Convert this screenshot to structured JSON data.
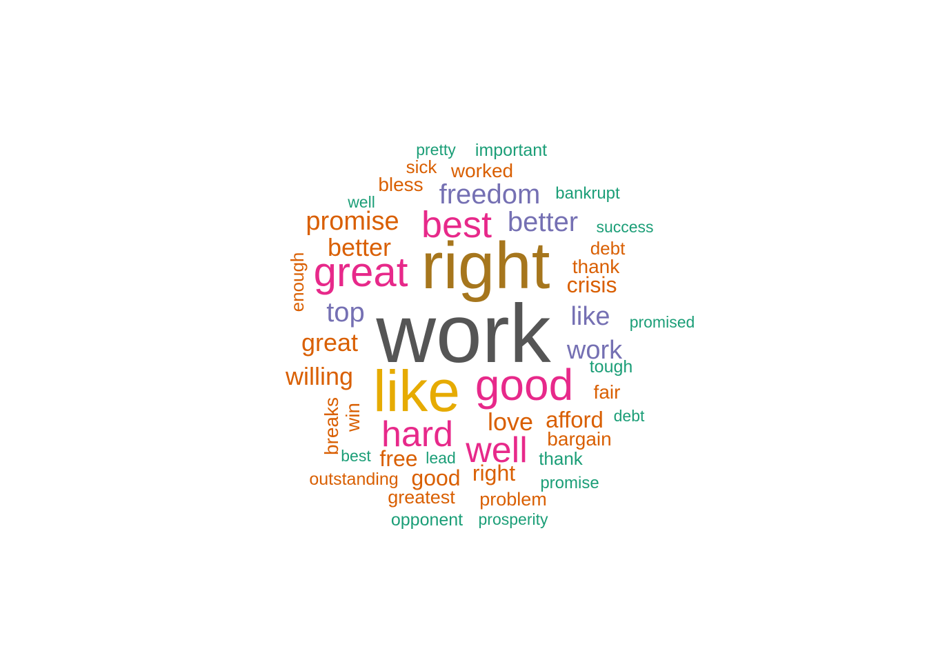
{
  "palette": {
    "c1": "#1b9e77",
    "c2": "#d95f02",
    "c3": "#7570b3",
    "c4": "#e7298a",
    "c5": "#a6761d",
    "c6": "#e6ab02",
    "c7": "#555555"
  },
  "words": [
    {
      "text": "work",
      "color": "c7"
    },
    {
      "text": "right",
      "color": "c5"
    },
    {
      "text": "like",
      "color": "c6"
    },
    {
      "text": "good",
      "color": "c4"
    },
    {
      "text": "great",
      "color": "c4"
    },
    {
      "text": "best",
      "color": "c4"
    },
    {
      "text": "hard",
      "color": "c4"
    },
    {
      "text": "well",
      "color": "c4"
    },
    {
      "text": "freedom",
      "color": "c3"
    },
    {
      "text": "better",
      "color": "c3"
    },
    {
      "text": "top",
      "color": "c3"
    },
    {
      "text": "like",
      "color": "c3"
    },
    {
      "text": "work",
      "color": "c3"
    },
    {
      "text": "promise",
      "color": "c2"
    },
    {
      "text": "better",
      "color": "c2"
    },
    {
      "text": "great",
      "color": "c2"
    },
    {
      "text": "willing",
      "color": "c2"
    },
    {
      "text": "love",
      "color": "c2"
    },
    {
      "text": "afford",
      "color": "c2"
    },
    {
      "text": "bargain",
      "color": "c2"
    },
    {
      "text": "free",
      "color": "c2"
    },
    {
      "text": "good",
      "color": "c2"
    },
    {
      "text": "right",
      "color": "c2"
    },
    {
      "text": "crisis",
      "color": "c2"
    },
    {
      "text": "thank",
      "color": "c2"
    },
    {
      "text": "debt",
      "color": "c2"
    },
    {
      "text": "fair",
      "color": "c2"
    },
    {
      "text": "worked",
      "color": "c2"
    },
    {
      "text": "bless",
      "color": "c2"
    },
    {
      "text": "sick",
      "color": "c2"
    },
    {
      "text": "enough",
      "color": "c2"
    },
    {
      "text": "breaks",
      "color": "c2"
    },
    {
      "text": "win",
      "color": "c2"
    },
    {
      "text": "outstanding",
      "color": "c2"
    },
    {
      "text": "greatest",
      "color": "c2"
    },
    {
      "text": "problem",
      "color": "c2"
    },
    {
      "text": "pretty",
      "color": "c1"
    },
    {
      "text": "important",
      "color": "c1"
    },
    {
      "text": "bankrupt",
      "color": "c1"
    },
    {
      "text": "well",
      "color": "c1"
    },
    {
      "text": "success",
      "color": "c1"
    },
    {
      "text": "promised",
      "color": "c1"
    },
    {
      "text": "tough",
      "color": "c1"
    },
    {
      "text": "debt",
      "color": "c1"
    },
    {
      "text": "best",
      "color": "c1"
    },
    {
      "text": "lead",
      "color": "c1"
    },
    {
      "text": "thank",
      "color": "c1"
    },
    {
      "text": "promise",
      "color": "c1"
    },
    {
      "text": "opponent",
      "color": "c1"
    },
    {
      "text": "prosperity",
      "color": "c1"
    }
  ]
}
